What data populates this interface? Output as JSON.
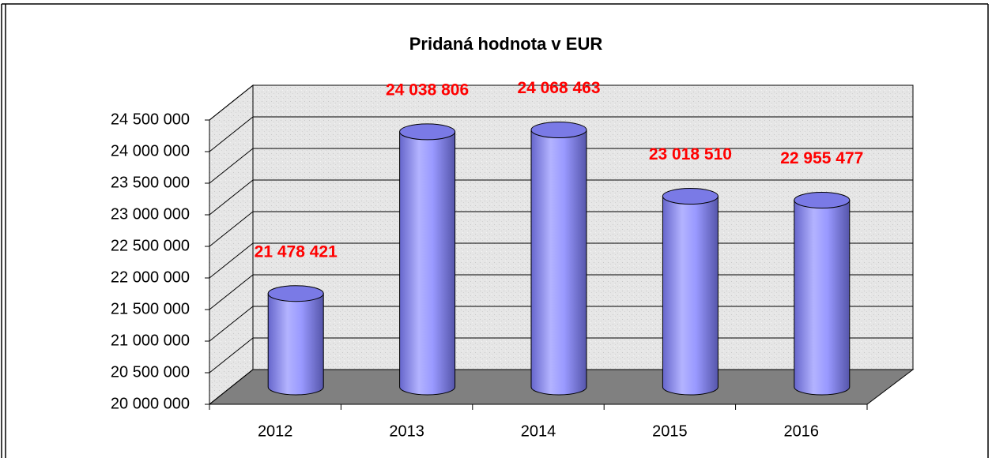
{
  "chart_data": {
    "type": "bar3d",
    "title": "Pridaná hodnota v EUR",
    "categories": [
      "2012",
      "2013",
      "2014",
      "2015",
      "2016"
    ],
    "values": [
      21478421,
      24038806,
      24068463,
      23018510,
      22955477
    ],
    "value_labels": [
      "21 478 421",
      "24 038 806",
      "24 068 463",
      "23 018 510",
      "22 955 477"
    ],
    "color": "#9999ff",
    "label_color": "#ff0000",
    "ylim": [
      20000000,
      24500000
    ],
    "yticks": [
      {
        "value": 20000000,
        "label": "20 000 000"
      },
      {
        "value": 20500000,
        "label": "20 500 000"
      },
      {
        "value": 21000000,
        "label": "21 000 000"
      },
      {
        "value": 21500000,
        "label": "21 500 000"
      },
      {
        "value": 22000000,
        "label": "22 000 000"
      },
      {
        "value": 22500000,
        "label": "22 500 000"
      },
      {
        "value": 23000000,
        "label": "23 000 000"
      },
      {
        "value": 23500000,
        "label": "23 500 000"
      },
      {
        "value": 24000000,
        "label": "24 000 000"
      },
      {
        "value": 24500000,
        "label": "24 500 000"
      }
    ],
    "grid": true
  }
}
